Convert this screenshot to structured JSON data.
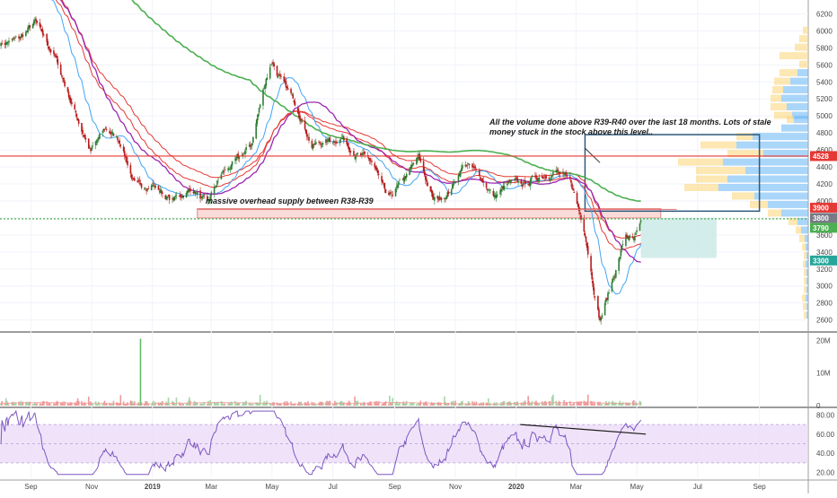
{
  "colors": {
    "up": "#26a69a",
    "down": "#ef5350",
    "candle_down": "#b71c1c",
    "ema_red": "#e53935",
    "ma_green": "#4caf50",
    "ma_purple": "#9c27b0",
    "ma_blue": "#42a5f5",
    "rsi_line": "#7e57c2",
    "rsi_band": "#ead7f7",
    "vp_blue": "#64b5f6",
    "vp_yellow": "#fcd77f",
    "supply_zone": "#f8d7d3",
    "target_box": "#c8e9e6"
  },
  "chart_data": [
    {
      "type": "candlestick",
      "panel": "price",
      "x_ticks": [
        "Sep",
        "Nov",
        "2019",
        "Mar",
        "May",
        "Jul",
        "Sep",
        "Nov",
        "2020",
        "Mar",
        "May",
        "Jul",
        "Sep"
      ],
      "y_ticks": [
        "6200",
        "6000",
        "5800",
        "5600",
        "5400",
        "5200",
        "5000",
        "4800",
        "4600",
        "4400",
        "4200",
        "4000",
        "3800",
        "3600",
        "3400",
        "3200",
        "3000",
        "2800",
        "2600"
      ],
      "ylim": [
        2480,
        6300
      ],
      "price_path": [
        [
          "2018-08-01",
          5850
        ],
        [
          "2018-08-20",
          5900
        ],
        [
          "2018-09-05",
          6100
        ],
        [
          "2018-09-25",
          5700
        ],
        [
          "2018-10-15",
          5050
        ],
        [
          "2018-10-31",
          4580
        ],
        [
          "2018-11-15",
          4850
        ],
        [
          "2018-11-30",
          4700
        ],
        [
          "2018-12-15",
          4150
        ],
        [
          "2019-01-01",
          4200
        ],
        [
          "2019-01-20",
          4000
        ],
        [
          "2019-02-10",
          4150
        ],
        [
          "2019-02-25",
          3950
        ],
        [
          "2019-03-10",
          4300
        ],
        [
          "2019-03-25",
          4450
        ],
        [
          "2019-04-10",
          4650
        ],
        [
          "2019-04-25",
          5450
        ],
        [
          "2019-05-01",
          5650
        ],
        [
          "2019-05-10",
          5400
        ],
        [
          "2019-05-25",
          5150
        ],
        [
          "2019-06-10",
          4650
        ],
        [
          "2019-06-25",
          4700
        ],
        [
          "2019-07-10",
          4750
        ],
        [
          "2019-07-25",
          4550
        ],
        [
          "2019-08-10",
          4450
        ],
        [
          "2019-08-25",
          4000
        ],
        [
          "2019-09-10",
          4250
        ],
        [
          "2019-09-25",
          4500
        ],
        [
          "2019-10-10",
          4000
        ],
        [
          "2019-10-25",
          4100
        ],
        [
          "2019-11-10",
          4450
        ],
        [
          "2019-11-25",
          4300
        ],
        [
          "2019-12-10",
          4050
        ],
        [
          "2019-12-25",
          4200
        ],
        [
          "2020-01-10",
          4200
        ],
        [
          "2020-01-25",
          4300
        ],
        [
          "2020-02-10",
          4350
        ],
        [
          "2020-02-25",
          4200
        ],
        [
          "2020-03-10",
          3650
        ],
        [
          "2020-03-20",
          2900
        ],
        [
          "2020-03-25",
          2600
        ],
        [
          "2020-04-05",
          3000
        ],
        [
          "2020-04-20",
          3600
        ],
        [
          "2020-04-28",
          3520
        ],
        [
          "2020-05-05",
          3700
        ]
      ],
      "price_labels": [
        {
          "text": "4528",
          "value": 4528,
          "color": "#e53935"
        },
        {
          "text": "3900",
          "value": 3900,
          "color": "#e53935"
        },
        {
          "text": "3800",
          "value": 3800,
          "color": "#787b86"
        },
        {
          "text": "3790",
          "value": 3790,
          "color": "#4caf50"
        },
        {
          "text": "3300",
          "value": 3300,
          "color": "#26a69a"
        }
      ],
      "horizontal_lines": [
        {
          "value": 4528,
          "color": "#e53935"
        },
        {
          "value": 3790,
          "color": "#4caf50",
          "style": "dotted"
        }
      ],
      "annotations": [
        {
          "text": "massive overhead supply between R38-R39"
        },
        {
          "text": "All the volume done above R39-R40 over the last 18 months. Lots of stale"
        },
        {
          "text": "money stuck in the stock above this level.."
        }
      ],
      "supply_zone": {
        "from": "2019-02-15",
        "to": "2020-05-25",
        "y_low": 3800,
        "y_high": 3910
      },
      "target_box": {
        "from": "2020-05-05",
        "to": "2020-07-20",
        "y_low": 3330,
        "y_high": 3800
      },
      "volume_box": {
        "from": "2020-03-10",
        "to": "2020-09-01",
        "y_low": 3880,
        "y_high": 4780
      }
    },
    {
      "type": "bar",
      "panel": "volume",
      "y_ticks": [
        "20M",
        "10M",
        "0"
      ],
      "spike": {
        "date": "2018-12-20",
        "value": 20500000
      }
    },
    {
      "type": "line",
      "panel": "rsi",
      "y_ticks": [
        "80.00",
        "60.00",
        "40.00",
        "20.00"
      ],
      "band": [
        30,
        70
      ],
      "divergence_line": {
        "from": [
          "2020-01-05",
          70
        ],
        "to": [
          "2020-05-10",
          60
        ]
      }
    }
  ]
}
